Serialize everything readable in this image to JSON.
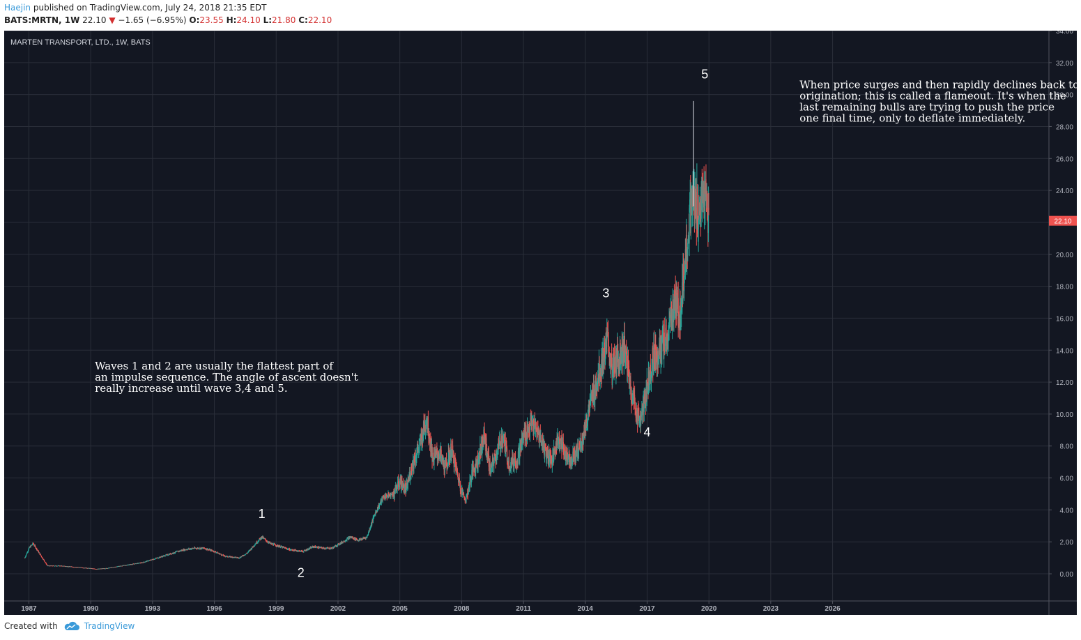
{
  "header": {
    "author": "Haejin",
    "published": "published on TradingView.com, July 24, 2018 21:35 EDT",
    "symbol": "BATS:MRTN, 1W",
    "last": "22.10",
    "change": "−1.65 (−6.95%)",
    "open_label": "O:",
    "open": "23.55",
    "high_label": "H:",
    "high": "24.10",
    "low_label": "L:",
    "low": "21.80",
    "close_label": "C:",
    "close": "22.10"
  },
  "footer": {
    "created_with": "Created with",
    "brand": "TradingView"
  },
  "colors": {
    "background": "#131722",
    "grid": "#2a2e39",
    "up": "#26a69a",
    "down": "#ef5350",
    "price_tag": "#ef5350",
    "text": "#ffffff",
    "axis_text": "#b2b5be",
    "author": "#3a9ad9"
  },
  "chart_data": {
    "type": "candlestick",
    "title": "MARTEN TRANSPORT, LTD., 1W, BATS",
    "x_ticks": [
      "1987",
      "1990",
      "1993",
      "1996",
      "1999",
      "2002",
      "2005",
      "2008",
      "2011",
      "2014",
      "2017",
      "2020",
      "2023",
      "2026"
    ],
    "y_ticks": [
      "0.00",
      "2.00",
      "4.00",
      "6.00",
      "8.00",
      "10.00",
      "12.00",
      "14.00",
      "16.00",
      "18.00",
      "20.00",
      "22.00",
      "24.00",
      "26.00",
      "28.00",
      "30.00",
      "32.00",
      "34.00"
    ],
    "xlim": [
      1985.8,
      2036.5
    ],
    "ylim": [
      -1.7,
      34.0
    ],
    "last_price": "22.10",
    "price_points": [
      [
        1986.8,
        1.0
      ],
      [
        1987.0,
        1.6
      ],
      [
        1987.2,
        1.9
      ],
      [
        1987.5,
        1.3
      ],
      [
        1987.9,
        0.5
      ],
      [
        1988.5,
        0.5
      ],
      [
        1989.5,
        0.4
      ],
      [
        1990.3,
        0.3
      ],
      [
        1990.8,
        0.35
      ],
      [
        1991.5,
        0.5
      ],
      [
        1992.5,
        0.7
      ],
      [
        1993.0,
        0.9
      ],
      [
        1993.5,
        1.1
      ],
      [
        1994.0,
        1.3
      ],
      [
        1994.5,
        1.5
      ],
      [
        1995.0,
        1.6
      ],
      [
        1995.5,
        1.6
      ],
      [
        1996.0,
        1.4
      ],
      [
        1996.5,
        1.1
      ],
      [
        1997.2,
        1.0
      ],
      [
        1997.6,
        1.3
      ],
      [
        1998.0,
        1.9
      ],
      [
        1998.3,
        2.3
      ],
      [
        1998.7,
        1.9
      ],
      [
        1999.2,
        1.7
      ],
      [
        1999.7,
        1.5
      ],
      [
        2000.3,
        1.4
      ],
      [
        2000.8,
        1.7
      ],
      [
        2001.3,
        1.6
      ],
      [
        2001.7,
        1.6
      ],
      [
        2002.1,
        1.9
      ],
      [
        2002.6,
        2.3
      ],
      [
        2003.0,
        2.1
      ],
      [
        2003.4,
        2.3
      ],
      [
        2003.8,
        3.8
      ],
      [
        2004.2,
        4.8
      ],
      [
        2004.7,
        5.0
      ],
      [
        2005.0,
        5.8
      ],
      [
        2005.3,
        5.2
      ],
      [
        2005.6,
        6.8
      ],
      [
        2006.0,
        8.2
      ],
      [
        2006.3,
        9.8
      ],
      [
        2006.6,
        7.2
      ],
      [
        2006.9,
        7.6
      ],
      [
        2007.2,
        6.6
      ],
      [
        2007.5,
        7.8
      ],
      [
        2007.8,
        6.2
      ],
      [
        2008.0,
        5.2
      ],
      [
        2008.2,
        4.6
      ],
      [
        2008.5,
        6.3
      ],
      [
        2008.8,
        7.2
      ],
      [
        2009.1,
        8.6
      ],
      [
        2009.4,
        6.4
      ],
      [
        2009.7,
        7.6
      ],
      [
        2010.0,
        8.6
      ],
      [
        2010.3,
        6.9
      ],
      [
        2010.7,
        7.2
      ],
      [
        2011.0,
        8.6
      ],
      [
        2011.4,
        9.4
      ],
      [
        2011.8,
        8.6
      ],
      [
        2012.1,
        7.6
      ],
      [
        2012.4,
        7.1
      ],
      [
        2012.7,
        8.6
      ],
      [
        2013.0,
        7.6
      ],
      [
        2013.3,
        7.2
      ],
      [
        2013.6,
        7.6
      ],
      [
        2013.9,
        8.6
      ],
      [
        2014.2,
        10.4
      ],
      [
        2014.5,
        11.8
      ],
      [
        2014.8,
        13.2
      ],
      [
        2015.1,
        14.6
      ],
      [
        2015.3,
        12.6
      ],
      [
        2015.6,
        13.6
      ],
      [
        2015.9,
        14.2
      ],
      [
        2016.2,
        11.6
      ],
      [
        2016.5,
        10.0
      ],
      [
        2016.7,
        9.6
      ],
      [
        2017.0,
        11.6
      ],
      [
        2017.3,
        13.6
      ],
      [
        2017.6,
        13.9
      ],
      [
        2018.0,
        14.8
      ],
      [
        2018.3,
        17.0
      ],
      [
        2018.6,
        16.2
      ],
      [
        2018.9,
        20.6
      ],
      [
        2019.2,
        23.4
      ],
      [
        2019.5,
        22.6
      ],
      [
        2019.8,
        23.8
      ],
      [
        2020.0,
        22.1
      ]
    ],
    "annotations": [
      {
        "text": "1",
        "x": 1998.3,
        "y": 3.5
      },
      {
        "text": "2",
        "x": 2000.2,
        "y": -0.2
      },
      {
        "text": "3",
        "x": 2015.0,
        "y": 17.3
      },
      {
        "text": "4",
        "x": 2017.0,
        "y": 8.6
      },
      {
        "text": "5",
        "x": 2019.8,
        "y": 31.0
      }
    ],
    "notes": [
      {
        "lines": [
          "Waves 1 and 2 are usually the flattest part of",
          "an impulse sequence. The angle of ascent doesn't",
          "really increase until wave 3,4 and 5."
        ],
        "x": 1990.2,
        "y": 12.8
      },
      {
        "lines": [
          "When price surges and then rapidly declines back to",
          "origination; this is called a flameout. It's when the",
          "last remaining bulls are trying to push the price",
          "one final time, only to deflate immediately."
        ],
        "x": 2024.4,
        "y": 30.4
      }
    ],
    "spike": {
      "x": 2019.25,
      "high": 29.6,
      "low": 23.0
    },
    "grid": true
  }
}
